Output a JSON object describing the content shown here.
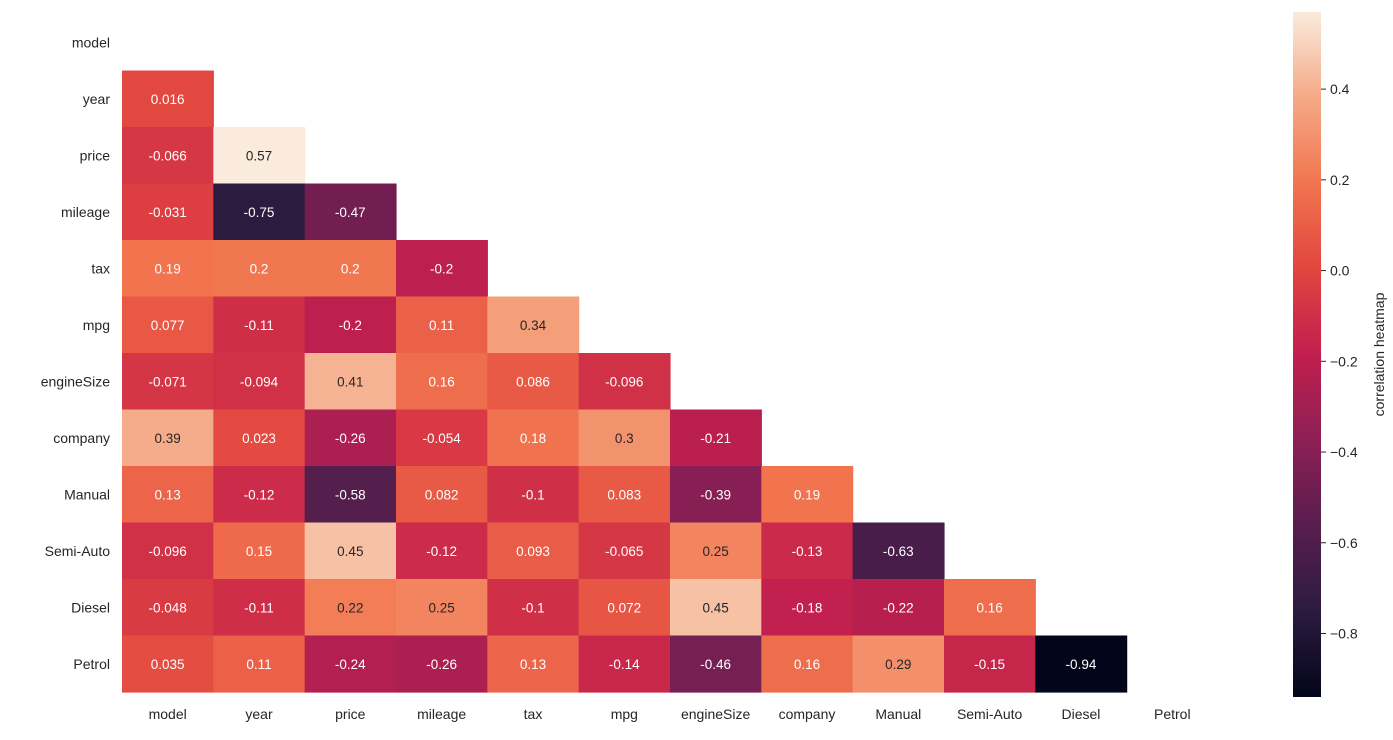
{
  "chart_data": {
    "type": "heatmap",
    "title": "",
    "xlabel": "",
    "ylabel": "",
    "x_labels": [
      "model",
      "year",
      "price",
      "mileage",
      "tax",
      "mpg",
      "engineSize",
      "company",
      "Manual",
      "Semi-Auto",
      "Diesel",
      "Petrol"
    ],
    "y_labels": [
      "model",
      "year",
      "price",
      "mileage",
      "tax",
      "mpg",
      "engineSize",
      "company",
      "Manual",
      "Semi-Auto",
      "Diesel",
      "Petrol"
    ],
    "mask": "upper-triangle-including-diagonal",
    "cells": [
      {
        "row": 1,
        "col": 0,
        "value": 0.016,
        "label": "0.016"
      },
      {
        "row": 2,
        "col": 0,
        "value": -0.066,
        "label": "-0.066"
      },
      {
        "row": 2,
        "col": 1,
        "value": 0.57,
        "label": "0.57"
      },
      {
        "row": 3,
        "col": 0,
        "value": -0.031,
        "label": "-0.031"
      },
      {
        "row": 3,
        "col": 1,
        "value": -0.75,
        "label": "-0.75"
      },
      {
        "row": 3,
        "col": 2,
        "value": -0.47,
        "label": "-0.47"
      },
      {
        "row": 4,
        "col": 0,
        "value": 0.19,
        "label": "0.19"
      },
      {
        "row": 4,
        "col": 1,
        "value": 0.2,
        "label": "0.2"
      },
      {
        "row": 4,
        "col": 2,
        "value": 0.2,
        "label": "0.2"
      },
      {
        "row": 4,
        "col": 3,
        "value": -0.2,
        "label": "-0.2"
      },
      {
        "row": 5,
        "col": 0,
        "value": 0.077,
        "label": "0.077"
      },
      {
        "row": 5,
        "col": 1,
        "value": -0.11,
        "label": "-0.11"
      },
      {
        "row": 5,
        "col": 2,
        "value": -0.2,
        "label": "-0.2"
      },
      {
        "row": 5,
        "col": 3,
        "value": 0.11,
        "label": "0.11"
      },
      {
        "row": 5,
        "col": 4,
        "value": 0.34,
        "label": "0.34"
      },
      {
        "row": 6,
        "col": 0,
        "value": -0.071,
        "label": "-0.071"
      },
      {
        "row": 6,
        "col": 1,
        "value": -0.094,
        "label": "-0.094"
      },
      {
        "row": 6,
        "col": 2,
        "value": 0.41,
        "label": "0.41"
      },
      {
        "row": 6,
        "col": 3,
        "value": 0.16,
        "label": "0.16"
      },
      {
        "row": 6,
        "col": 4,
        "value": 0.086,
        "label": "0.086"
      },
      {
        "row": 6,
        "col": 5,
        "value": -0.096,
        "label": "-0.096"
      },
      {
        "row": 7,
        "col": 0,
        "value": 0.39,
        "label": "0.39"
      },
      {
        "row": 7,
        "col": 1,
        "value": 0.023,
        "label": "0.023"
      },
      {
        "row": 7,
        "col": 2,
        "value": -0.26,
        "label": "-0.26"
      },
      {
        "row": 7,
        "col": 3,
        "value": -0.054,
        "label": "-0.054"
      },
      {
        "row": 7,
        "col": 4,
        "value": 0.18,
        "label": "0.18"
      },
      {
        "row": 7,
        "col": 5,
        "value": 0.3,
        "label": "0.3"
      },
      {
        "row": 7,
        "col": 6,
        "value": -0.21,
        "label": "-0.21"
      },
      {
        "row": 8,
        "col": 0,
        "value": 0.13,
        "label": "0.13"
      },
      {
        "row": 8,
        "col": 1,
        "value": -0.12,
        "label": "-0.12"
      },
      {
        "row": 8,
        "col": 2,
        "value": -0.58,
        "label": "-0.58"
      },
      {
        "row": 8,
        "col": 3,
        "value": 0.082,
        "label": "0.082"
      },
      {
        "row": 8,
        "col": 4,
        "value": -0.1,
        "label": "-0.1"
      },
      {
        "row": 8,
        "col": 5,
        "value": 0.083,
        "label": "0.083"
      },
      {
        "row": 8,
        "col": 6,
        "value": -0.39,
        "label": "-0.39"
      },
      {
        "row": 8,
        "col": 7,
        "value": 0.19,
        "label": "0.19"
      },
      {
        "row": 9,
        "col": 0,
        "value": -0.096,
        "label": "-0.096"
      },
      {
        "row": 9,
        "col": 1,
        "value": 0.15,
        "label": "0.15"
      },
      {
        "row": 9,
        "col": 2,
        "value": 0.45,
        "label": "0.45"
      },
      {
        "row": 9,
        "col": 3,
        "value": -0.12,
        "label": "-0.12"
      },
      {
        "row": 9,
        "col": 4,
        "value": 0.093,
        "label": "0.093"
      },
      {
        "row": 9,
        "col": 5,
        "value": -0.065,
        "label": "-0.065"
      },
      {
        "row": 9,
        "col": 6,
        "value": 0.25,
        "label": "0.25"
      },
      {
        "row": 9,
        "col": 7,
        "value": -0.13,
        "label": "-0.13"
      },
      {
        "row": 9,
        "col": 8,
        "value": -0.63,
        "label": "-0.63"
      },
      {
        "row": 10,
        "col": 0,
        "value": -0.048,
        "label": "-0.048"
      },
      {
        "row": 10,
        "col": 1,
        "value": -0.11,
        "label": "-0.11"
      },
      {
        "row": 10,
        "col": 2,
        "value": 0.22,
        "label": "0.22"
      },
      {
        "row": 10,
        "col": 3,
        "value": 0.25,
        "label": "0.25"
      },
      {
        "row": 10,
        "col": 4,
        "value": -0.1,
        "label": "-0.1"
      },
      {
        "row": 10,
        "col": 5,
        "value": 0.072,
        "label": "0.072"
      },
      {
        "row": 10,
        "col": 6,
        "value": 0.45,
        "label": "0.45"
      },
      {
        "row": 10,
        "col": 7,
        "value": -0.18,
        "label": "-0.18"
      },
      {
        "row": 10,
        "col": 8,
        "value": -0.22,
        "label": "-0.22"
      },
      {
        "row": 10,
        "col": 9,
        "value": 0.16,
        "label": "0.16"
      },
      {
        "row": 11,
        "col": 0,
        "value": 0.035,
        "label": "0.035"
      },
      {
        "row": 11,
        "col": 1,
        "value": 0.11,
        "label": "0.11"
      },
      {
        "row": 11,
        "col": 2,
        "value": -0.24,
        "label": "-0.24"
      },
      {
        "row": 11,
        "col": 3,
        "value": -0.26,
        "label": "-0.26"
      },
      {
        "row": 11,
        "col": 4,
        "value": 0.13,
        "label": "0.13"
      },
      {
        "row": 11,
        "col": 5,
        "value": -0.14,
        "label": "-0.14"
      },
      {
        "row": 11,
        "col": 6,
        "value": -0.46,
        "label": "-0.46"
      },
      {
        "row": 11,
        "col": 7,
        "value": 0.16,
        "label": "0.16"
      },
      {
        "row": 11,
        "col": 8,
        "value": 0.29,
        "label": "0.29"
      },
      {
        "row": 11,
        "col": 9,
        "value": -0.15,
        "label": "-0.15"
      },
      {
        "row": 11,
        "col": 10,
        "value": -0.94,
        "label": "-0.94"
      }
    ],
    "colorbar": {
      "label": "correlation heatmap",
      "colormap": "rocket",
      "vmin": -0.94,
      "vmax": 0.57,
      "ticks": [
        0.4,
        0.2,
        0.0,
        -0.2,
        -0.4,
        -0.6,
        -0.8
      ],
      "tick_labels": [
        "0.4",
        "0.2",
        "0.0",
        "−0.2",
        "−0.4",
        "−0.6",
        "−0.8"
      ]
    }
  }
}
